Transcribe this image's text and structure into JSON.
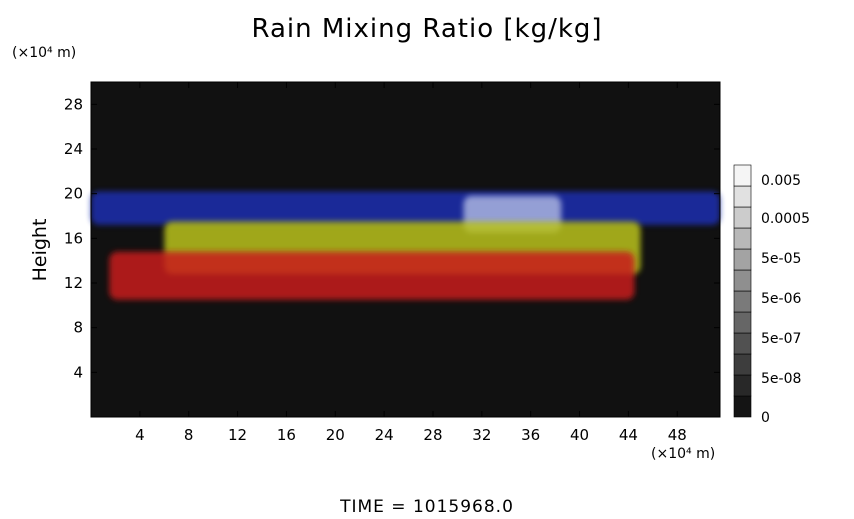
{
  "chart_data": {
    "type": "heatmap",
    "title": "Rain Mixing Ratio [kg/kg]",
    "ylabel": "Height",
    "x_unit": "(×10⁴ m)",
    "y_unit": "(×10⁴ m)",
    "xlim": [
      0,
      51.5
    ],
    "ylim": [
      0,
      30
    ],
    "x_ticks": [
      4,
      8,
      12,
      16,
      20,
      24,
      28,
      32,
      36,
      40,
      44,
      48
    ],
    "y_ticks": [
      4,
      8,
      12,
      16,
      20,
      24,
      28
    ],
    "background_color": "#111111",
    "colorbar": {
      "labels": [
        "0.005",
        "0.0005",
        "5e-05",
        "5e-06",
        "5e-07",
        "5e-08",
        "0"
      ],
      "levels": 12
    },
    "regions": [
      {
        "color": "#1f2fb0",
        "x": [
          0,
          51.5
        ],
        "y": [
          17.2,
          20.2
        ],
        "description_band": "upper"
      },
      {
        "color": "#aab4e0",
        "x": [
          30.5,
          38.5
        ],
        "y": [
          16.5,
          19.8
        ],
        "description_band": "upper-light"
      },
      {
        "color": "#b9c21a",
        "x": [
          6,
          45
        ],
        "y": [
          12.8,
          17.5
        ],
        "description_band": "middle"
      },
      {
        "color": "#c81a1a",
        "x": [
          1.5,
          44.5
        ],
        "y": [
          10.5,
          14.8
        ],
        "description_band": "lower"
      }
    ]
  },
  "footer": {
    "time_label": "TIME  =  1015968.0"
  }
}
